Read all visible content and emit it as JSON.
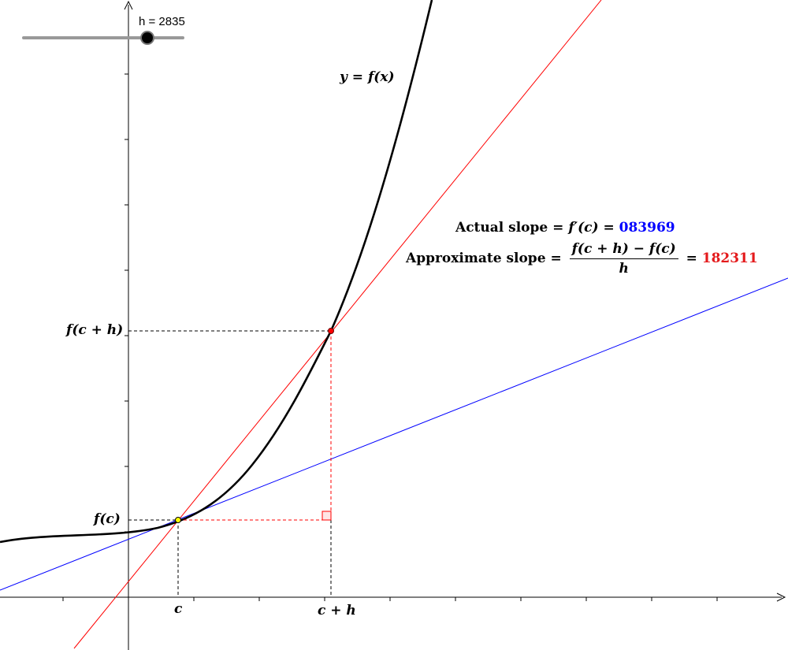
{
  "slider": {
    "name": "h",
    "value": "2835",
    "label": "h = 2835"
  },
  "graph": {
    "curve_label": "y = f(x)",
    "x_labels": {
      "c": "c",
      "c_plus_h": "c + h"
    },
    "y_labels": {
      "f_c": "f(c)",
      "f_c_plus_h": "f(c + h)"
    }
  },
  "slopes": {
    "actual": {
      "title": "Actual slope",
      "equals": "=",
      "expression": "f′(c)",
      "value": "083969"
    },
    "approximate": {
      "title": "Approximate slope",
      "equals": "=",
      "numerator": "f(c + h) − f(c)",
      "denominator": "h",
      "value": "182311"
    }
  },
  "colors": {
    "curve": "#000000",
    "secant": "#ff0000",
    "tangent": "#0000ff",
    "axes": "#000000",
    "slider_track": "#999999",
    "actual_value": "#0000ff",
    "approx_value": "#e41a1c"
  }
}
